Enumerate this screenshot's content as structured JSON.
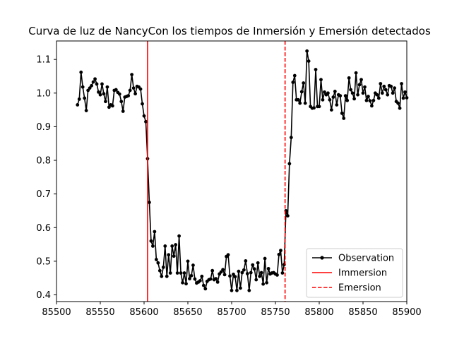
{
  "chart_data": {
    "type": "line",
    "title": "Curva de luz de NancyCon los tiempos de Inmersión y Emersión detectados",
    "xlabel": "",
    "ylabel": "",
    "xlim": [
      85500,
      85900
    ],
    "ylim": [
      0.38,
      1.155
    ],
    "x_ticks": [
      85500,
      85550,
      85600,
      85650,
      85700,
      85750,
      85800,
      85850,
      85900
    ],
    "y_ticks": [
      0.4,
      0.5,
      0.6,
      0.7,
      0.8,
      0.9,
      1.0,
      1.1
    ],
    "grid": false,
    "legend_position": "lower right",
    "colors": {
      "observation": "#000000",
      "immersion": "#ff0000",
      "emersion": "#ff0000"
    },
    "legend": [
      "Observation",
      "Immersion",
      "Emersion"
    ],
    "immersion_x": 85604,
    "emersion_x": 85761,
    "series": [
      {
        "name": "Observation",
        "x": [
          85524,
          85526,
          85528,
          85530,
          85532,
          85534,
          85536,
          85538,
          85540,
          85542,
          85544,
          85546,
          85548,
          85550,
          85552,
          85554,
          85556,
          85558,
          85560,
          85562,
          85564,
          85566,
          85568,
          85570,
          85572,
          85574,
          85576,
          85578,
          85580,
          85582,
          85584,
          85586,
          85588,
          85590,
          85592,
          85594,
          85596,
          85598,
          85600,
          85602,
          85604,
          85606,
          85608,
          85610,
          85612,
          85614,
          85616,
          85618,
          85620,
          85622,
          85624,
          85626,
          85628,
          85630,
          85632,
          85634,
          85636,
          85638,
          85640,
          85642,
          85644,
          85646,
          85648,
          85650,
          85652,
          85654,
          85656,
          85658,
          85660,
          85662,
          85664,
          85666,
          85668,
          85670,
          85672,
          85674,
          85676,
          85678,
          85680,
          85682,
          85684,
          85686,
          85688,
          85690,
          85692,
          85694,
          85696,
          85698,
          85700,
          85702,
          85704,
          85706,
          85708,
          85710,
          85712,
          85714,
          85716,
          85718,
          85720,
          85722,
          85724,
          85726,
          85728,
          85730,
          85732,
          85734,
          85736,
          85738,
          85740,
          85742,
          85744,
          85746,
          85748,
          85750,
          85752,
          85754,
          85756,
          85758,
          85760,
          85762,
          85764,
          85766,
          85768,
          85770,
          85772,
          85774,
          85776,
          85778,
          85780,
          85782,
          85784,
          85786,
          85788,
          85790,
          85792,
          85794,
          85796,
          85798,
          85800,
          85802,
          85804,
          85806,
          85808,
          85810,
          85812,
          85814,
          85816,
          85818,
          85820,
          85822,
          85824,
          85826,
          85828,
          85830,
          85832,
          85834,
          85836,
          85838,
          85840,
          85842,
          85844,
          85846,
          85848,
          85850,
          85852,
          85854,
          85856,
          85858,
          85860,
          85862,
          85864,
          85866,
          85868,
          85870,
          85872,
          85874,
          85876,
          85878,
          85880,
          85882,
          85884,
          85886,
          85888,
          85890,
          85892,
          85894,
          85896,
          85898,
          85900
        ],
        "y": [
          0.965,
          0.982,
          1.062,
          1.018,
          0.985,
          0.948,
          1.008,
          1.015,
          1.022,
          1.033,
          1.042,
          1.027,
          1.003,
          0.995,
          1.027,
          0.998,
          0.975,
          1.018,
          0.958,
          0.965,
          0.962,
          1.008,
          1.01,
          1.002,
          0.997,
          0.975,
          0.946,
          0.988,
          0.99,
          0.992,
          1.008,
          1.055,
          1.015,
          0.998,
          1.02,
          1.018,
          1.012,
          0.968,
          0.932,
          0.915,
          0.805,
          0.675,
          0.56,
          0.545,
          0.588,
          0.505,
          0.495,
          0.472,
          0.455,
          0.482,
          0.545,
          0.455,
          0.519,
          0.465,
          0.545,
          0.515,
          0.549,
          0.465,
          0.575,
          0.465,
          0.436,
          0.465,
          0.433,
          0.5,
          0.448,
          0.457,
          0.488,
          0.447,
          0.435,
          0.438,
          0.442,
          0.455,
          0.428,
          0.418,
          0.44,
          0.445,
          0.447,
          0.472,
          0.445,
          0.448,
          0.438,
          0.462,
          0.468,
          0.475,
          0.46,
          0.514,
          0.519,
          0.456,
          0.413,
          0.461,
          0.454,
          0.413,
          0.47,
          0.42,
          0.466,
          0.474,
          0.501,
          0.463,
          0.413,
          0.466,
          0.489,
          0.477,
          0.445,
          0.495,
          0.455,
          0.466,
          0.432,
          0.508,
          0.436,
          0.478,
          0.462,
          0.465,
          0.466,
          0.462,
          0.459,
          0.52,
          0.532,
          0.465,
          0.49,
          0.65,
          0.635,
          0.79,
          0.868,
          1.032,
          1.052,
          0.98,
          0.98,
          0.97,
          1.004,
          1.03,
          0.97,
          1.125,
          1.095,
          0.96,
          0.955,
          0.956,
          1.07,
          0.96,
          0.96,
          1.04,
          0.98,
          1.003,
          0.995,
          1.0,
          0.98,
          0.95,
          0.988,
          1.005,
          0.965,
          0.995,
          0.992,
          0.94,
          0.925,
          0.992,
          0.978,
          1.045,
          1.01,
          1.0,
          0.983,
          1.06,
          0.995,
          1.025,
          1.04,
          1.0,
          1.018,
          0.978,
          0.99,
          0.977,
          0.962,
          0.978,
          1.0,
          0.995,
          0.985,
          1.028,
          1.0,
          1.02,
          1.01,
          0.995,
          1.022,
          1.02,
          1.0,
          1.015,
          0.975,
          0.97,
          0.955,
          1.028,
          0.985,
          1.003,
          0.986
        ]
      }
    ]
  }
}
